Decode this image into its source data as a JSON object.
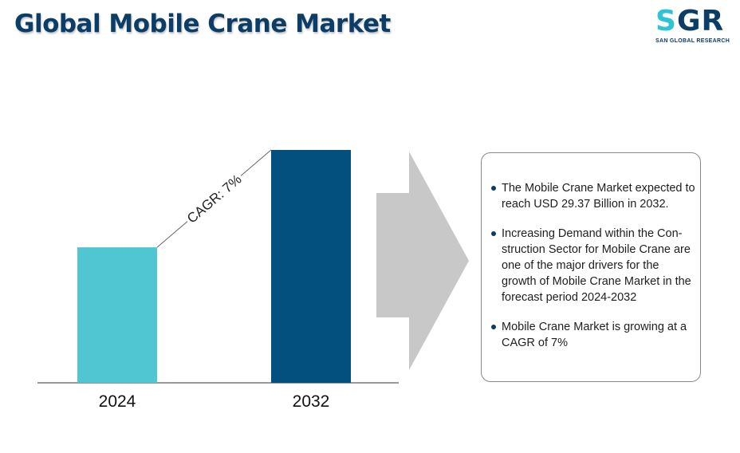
{
  "title": "Global Mobile Crane Market",
  "logo": {
    "letters": "SGR",
    "subtitle": "SAN GLOBAL RESEARCH",
    "colors": [
      "#2ec4d6",
      "#0b3d66"
    ]
  },
  "chart_data": {
    "type": "bar",
    "categories": [
      "2024",
      "2032"
    ],
    "series": [
      {
        "values": [
          17.09,
          29.37
        ]
      }
    ],
    "colors": [
      "#4fc6d2",
      "#03507e"
    ],
    "annotation": "CAGR: 7%",
    "ylim": [
      0,
      29.37
    ],
    "grid": false,
    "xlabel": "",
    "ylabel": ""
  },
  "info": {
    "items": [
      "The Mobile Crane Market expected to reach USD 29.37 Billion in 2032.",
      "Increasing Demand within the Con-struction Sector for Mobile Crane are one of the major drivers for the growth of Mobile Crane Market in the forecast period 2024-2032",
      "Mobile Crane Market is growing at a CAGR of 7%"
    ]
  }
}
